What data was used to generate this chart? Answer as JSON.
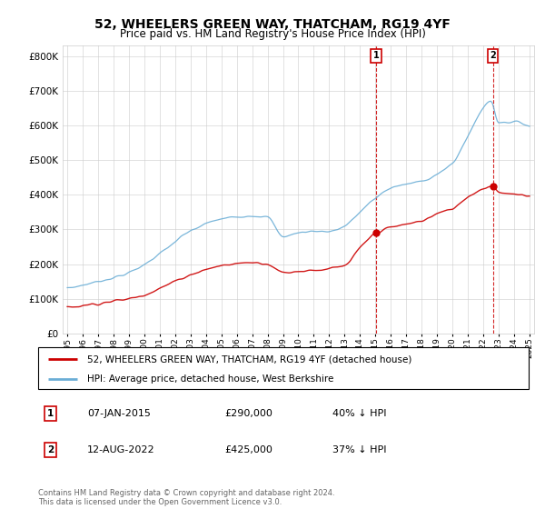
{
  "title": "52, WHEELERS GREEN WAY, THATCHAM, RG19 4YF",
  "subtitle": "Price paid vs. HM Land Registry's House Price Index (HPI)",
  "ylim": [
    0,
    830000
  ],
  "yticks": [
    0,
    100000,
    200000,
    300000,
    400000,
    500000,
    600000,
    700000,
    800000
  ],
  "background_color": "#ffffff",
  "grid_color": "#cccccc",
  "hpi_color": "#6baed6",
  "price_color": "#cc0000",
  "vline_color": "#cc0000",
  "legend_entry1": "52, WHEELERS GREEN WAY, THATCHAM, RG19 4YF (detached house)",
  "legend_entry2": "HPI: Average price, detached house, West Berkshire",
  "annotation1_text": "07-JAN-2015",
  "annotation1_price": "£290,000",
  "annotation1_hpi": "40% ↓ HPI",
  "annotation2_text": "12-AUG-2022",
  "annotation2_price": "£425,000",
  "annotation2_hpi": "37% ↓ HPI",
  "footer": "Contains HM Land Registry data © Crown copyright and database right 2024.\nThis data is licensed under the Open Government Licence v3.0.",
  "year1": 2015.03,
  "year2": 2022.62,
  "val1_red": 290000,
  "val2_red": 425000,
  "xlim_left": 1994.7,
  "xlim_right": 2025.3
}
